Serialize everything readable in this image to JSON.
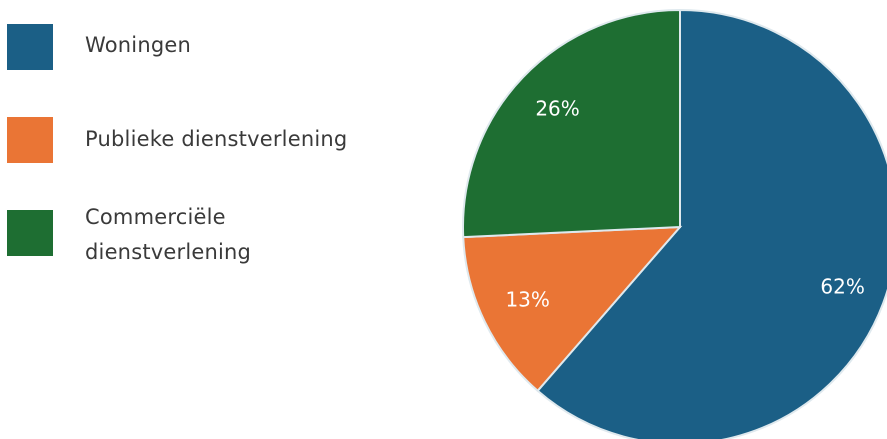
{
  "chart_data": {
    "type": "pie",
    "categories": [
      "Woningen",
      "Publieke dienstverlening",
      "Commerciële dienstverlening"
    ],
    "values": [
      62,
      13,
      26
    ],
    "data_labels": [
      "62%",
      "13%",
      "26%"
    ],
    "colors": [
      "#1b5f86",
      "#ea7535",
      "#1e6e32"
    ],
    "legend": {
      "placement": "left",
      "entries": [
        {
          "line1": "Woningen",
          "line2": ""
        },
        {
          "line1": "Publieke dienstverlening",
          "line2": ""
        },
        {
          "line1": "Commerciële",
          "line2": "dienstverlening"
        }
      ]
    }
  }
}
